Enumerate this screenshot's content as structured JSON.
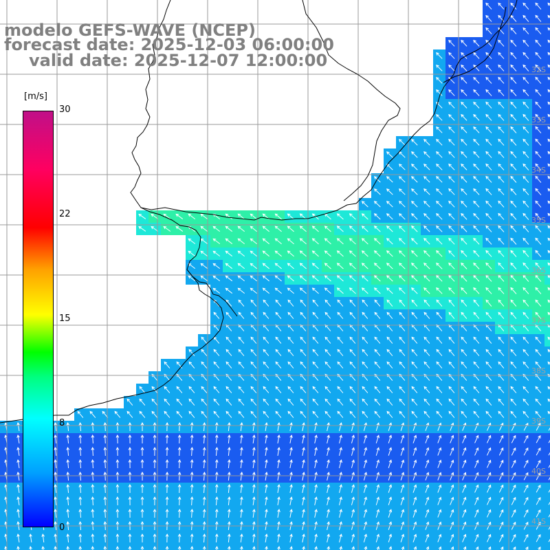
{
  "title": {
    "line1": "modelo GEFS-WAVE (NCEP)",
    "line2": "forecast date: 2025-12-03 06:00:00",
    "line3": "valid date: 2025-12-07 12:00:00"
  },
  "colorbar": {
    "unit": "[m/s]",
    "ticks": [
      "30",
      "22",
      "15",
      "8",
      "0"
    ],
    "min": 0,
    "max": 30,
    "colors": [
      "#0000ff",
      "#00a0ff",
      "#00ffff",
      "#00ff80",
      "#00ff00",
      "#ffff00",
      "#ffa000",
      "#ff0000",
      "#ff0060",
      "#c01088"
    ]
  },
  "latitude_labels": [
    "32S",
    "33S",
    "34S",
    "35S",
    "36S",
    "37S",
    "38S",
    "39S",
    "40S",
    "41S"
  ],
  "field": {
    "variable": "wind speed",
    "colors": {
      "low": "#1a5cf0",
      "mid": "#12a8f0",
      "high": "#1ee8d8",
      "peak": "#2ef0a8"
    },
    "arrow_color": "#ffffff",
    "grid_color": "#999999",
    "coast_color": "#000000"
  }
}
